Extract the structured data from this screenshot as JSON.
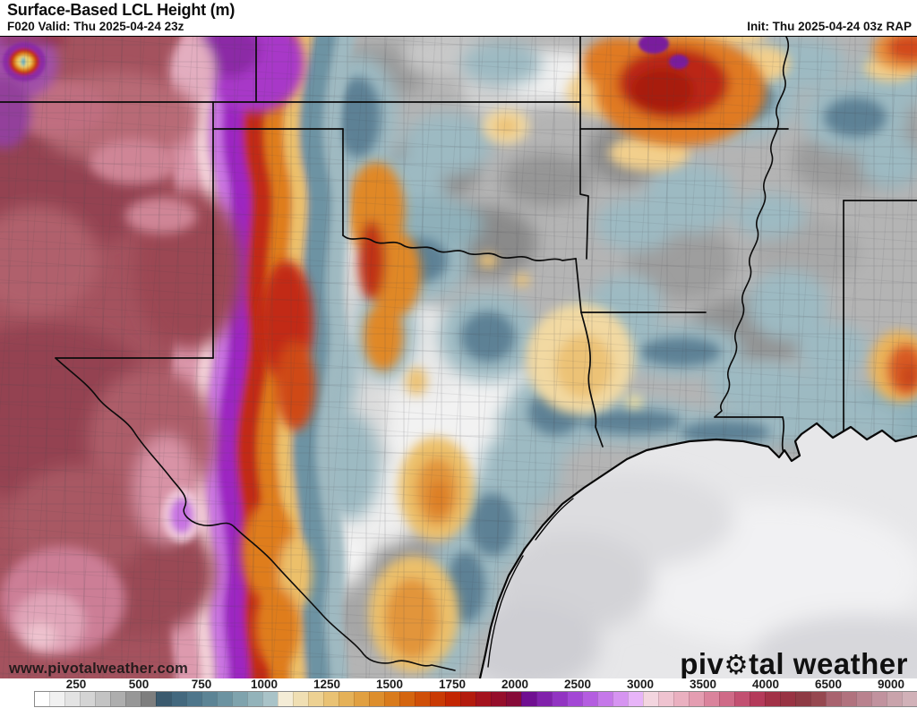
{
  "header": {
    "title": "Surface-Based LCL Height (m)",
    "valid": "F020 Valid: Thu 2025-04-24 23z",
    "init": "Init: Thu 2025-04-24 03z RAP"
  },
  "map": {
    "watermark": "www.pivotalweather.com",
    "logo": {
      "pre": "piv",
      "gear": "⚙",
      "post": "tal weather"
    }
  },
  "colorbar": {
    "units": "m",
    "ticks": [
      "250",
      "500",
      "750",
      "1000",
      "1250",
      "1500",
      "1750",
      "2000",
      "2500",
      "3000",
      "3500",
      "4000",
      "6500",
      "9000"
    ],
    "tick_start_x": 85,
    "tick_spacing_x": 70,
    "segments": [
      "#ffffff",
      "#f1f1f1",
      "#e3e3e3",
      "#d4d4d4",
      "#c3c3c3",
      "#aeaeae",
      "#979797",
      "#7e7e7e",
      "#3b5a6e",
      "#43687e",
      "#4e768b",
      "#5c8495",
      "#6c93a1",
      "#7fa3ad",
      "#93b3ba",
      "#a9c3c8",
      "#f4ecd6",
      "#f0dfb3",
      "#edd192",
      "#e9c274",
      "#e5b158",
      "#e1a041",
      "#dd8e2d",
      "#d97b1c",
      "#d4650f",
      "#cf4f08",
      "#c93a04",
      "#c32602",
      "#b31b0d",
      "#a4131d",
      "#950e2b",
      "#860b38",
      "#700f91",
      "#8121ab",
      "#9234c2",
      "#a348d5",
      "#b45de0",
      "#c578e9",
      "#d694f1",
      "#e7b4f8",
      "#f3d5df",
      "#efc3d0",
      "#eab0c0",
      "#e49db1",
      "#da839c",
      "#cf6a87",
      "#c25071",
      "#b43a5a",
      "#a23147",
      "#983343",
      "#8e3a44",
      "#964850",
      "#a9636f",
      "#b1727e",
      "#b9828e",
      "#c1929e",
      "#c9a3ab",
      "#d1b1b8"
    ]
  }
}
